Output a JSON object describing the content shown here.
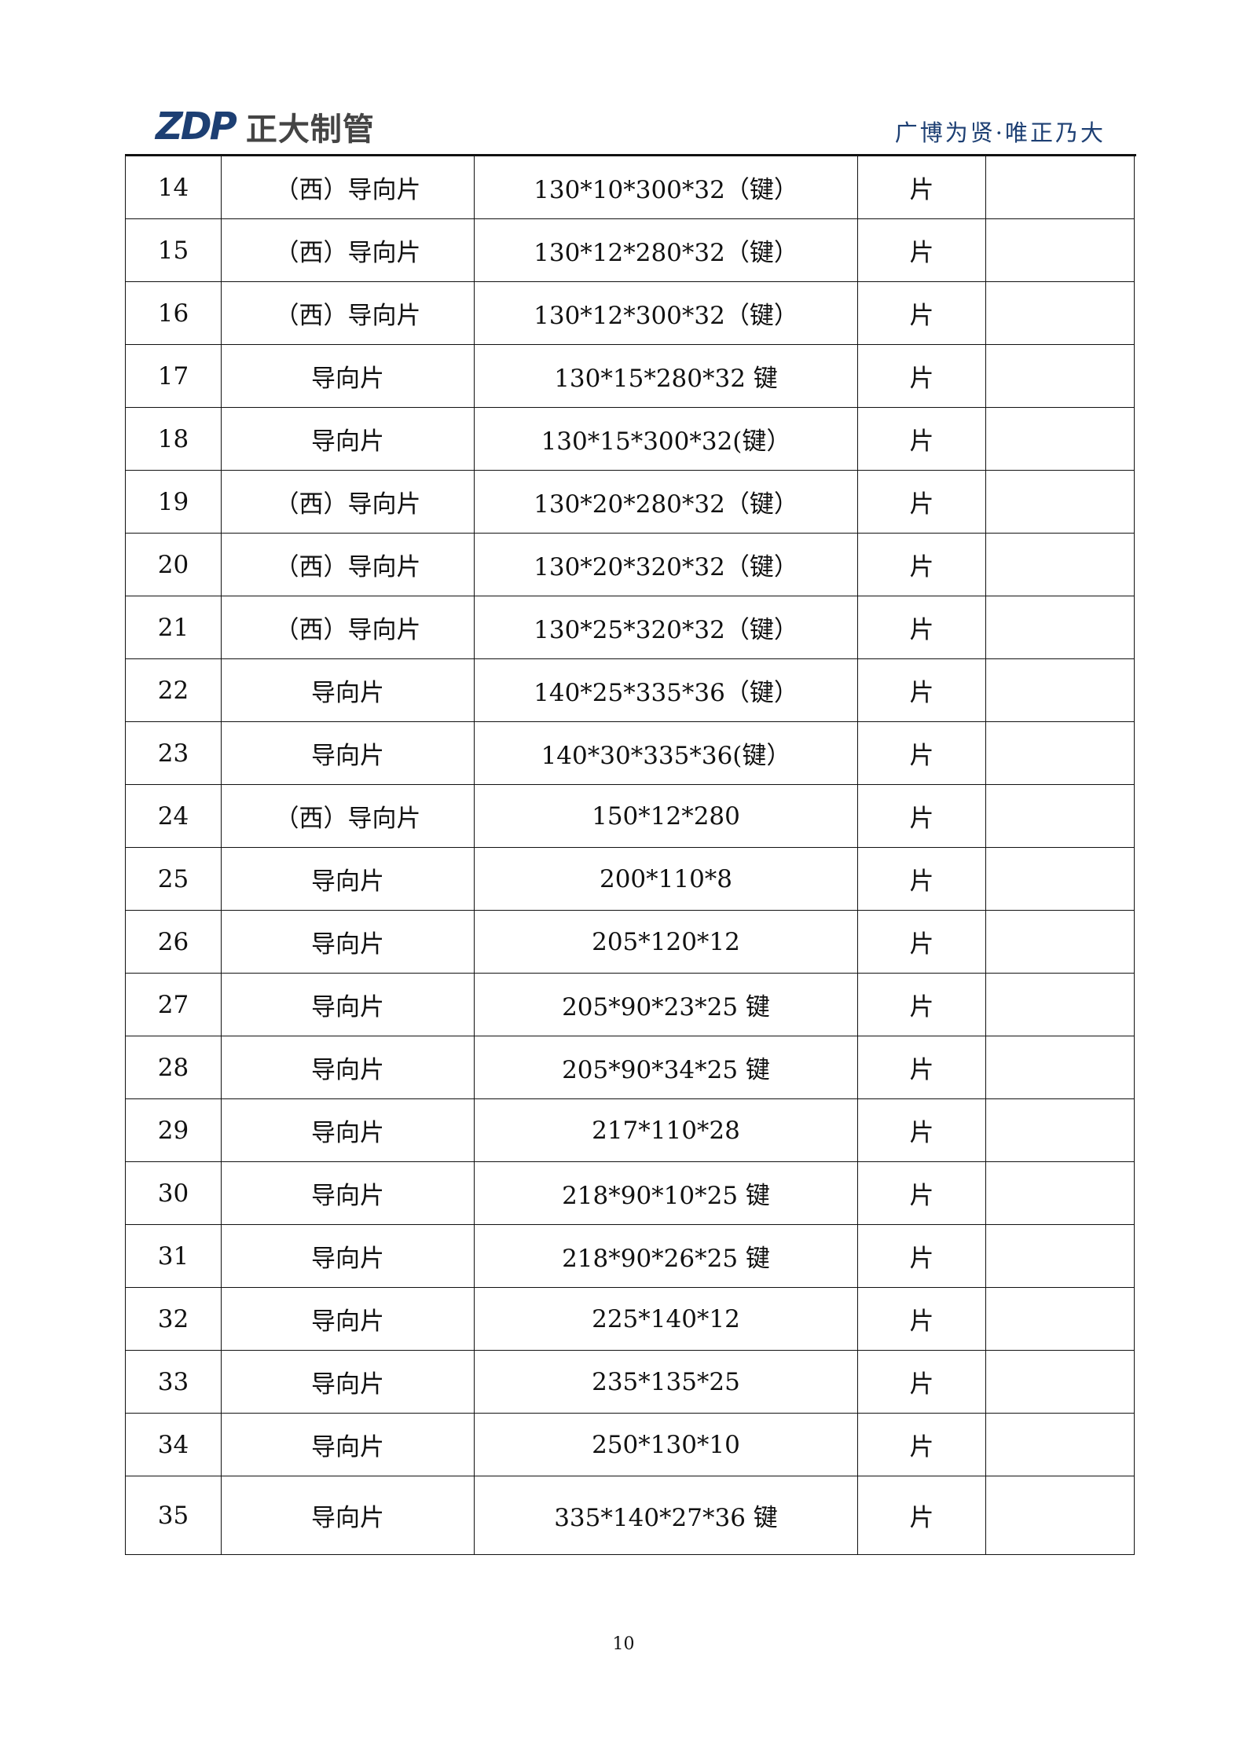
{
  "header": {
    "logo_mark": "ZDP",
    "logo_text": "正大制管",
    "tagline": "广博为贤·唯正乃大",
    "brand_color": "#1d3f73"
  },
  "table": {
    "rows": [
      {
        "no": "14",
        "name": "（西）导向片",
        "spec": "130*10*300*32（键）",
        "unit": "片",
        "remark": ""
      },
      {
        "no": "15",
        "name": "（西）导向片",
        "spec": "130*12*280*32（键）",
        "unit": "片",
        "remark": ""
      },
      {
        "no": "16",
        "name": "（西）导向片",
        "spec": "130*12*300*32（键）",
        "unit": "片",
        "remark": ""
      },
      {
        "no": "17",
        "name": "导向片",
        "spec": "130*15*280*32 键",
        "unit": "片",
        "remark": ""
      },
      {
        "no": "18",
        "name": "导向片",
        "spec": "130*15*300*32(键）",
        "unit": "片",
        "remark": ""
      },
      {
        "no": "19",
        "name": "（西）导向片",
        "spec": "130*20*280*32（键）",
        "unit": "片",
        "remark": ""
      },
      {
        "no": "20",
        "name": "（西）导向片",
        "spec": "130*20*320*32（键）",
        "unit": "片",
        "remark": ""
      },
      {
        "no": "21",
        "name": "（西）导向片",
        "spec": "130*25*320*32（键）",
        "unit": "片",
        "remark": ""
      },
      {
        "no": "22",
        "name": "导向片",
        "spec": "140*25*335*36（键）",
        "unit": "片",
        "remark": ""
      },
      {
        "no": "23",
        "name": "导向片",
        "spec": "140*30*335*36(键）",
        "unit": "片",
        "remark": ""
      },
      {
        "no": "24",
        "name": "（西）导向片",
        "spec": "150*12*280",
        "unit": "片",
        "remark": ""
      },
      {
        "no": "25",
        "name": "导向片",
        "spec": "200*110*8",
        "unit": "片",
        "remark": ""
      },
      {
        "no": "26",
        "name": "导向片",
        "spec": "205*120*12",
        "unit": "片",
        "remark": ""
      },
      {
        "no": "27",
        "name": "导向片",
        "spec": "205*90*23*25 键",
        "unit": "片",
        "remark": ""
      },
      {
        "no": "28",
        "name": "导向片",
        "spec": "205*90*34*25 键",
        "unit": "片",
        "remark": ""
      },
      {
        "no": "29",
        "name": "导向片",
        "spec": "217*110*28",
        "unit": "片",
        "remark": ""
      },
      {
        "no": "30",
        "name": "导向片",
        "spec": "218*90*10*25 键",
        "unit": "片",
        "remark": ""
      },
      {
        "no": "31",
        "name": "导向片",
        "spec": "218*90*26*25 键",
        "unit": "片",
        "remark": ""
      },
      {
        "no": "32",
        "name": "导向片",
        "spec": "225*140*12",
        "unit": "片",
        "remark": ""
      },
      {
        "no": "33",
        "name": "导向片",
        "spec": "235*135*25",
        "unit": "片",
        "remark": ""
      },
      {
        "no": "34",
        "name": "导向片",
        "spec": "250*130*10",
        "unit": "片",
        "remark": ""
      },
      {
        "no": "35",
        "name": "导向片",
        "spec": "335*140*27*36 键",
        "unit": "片",
        "remark": ""
      }
    ]
  },
  "footer": {
    "page_number": "10"
  }
}
